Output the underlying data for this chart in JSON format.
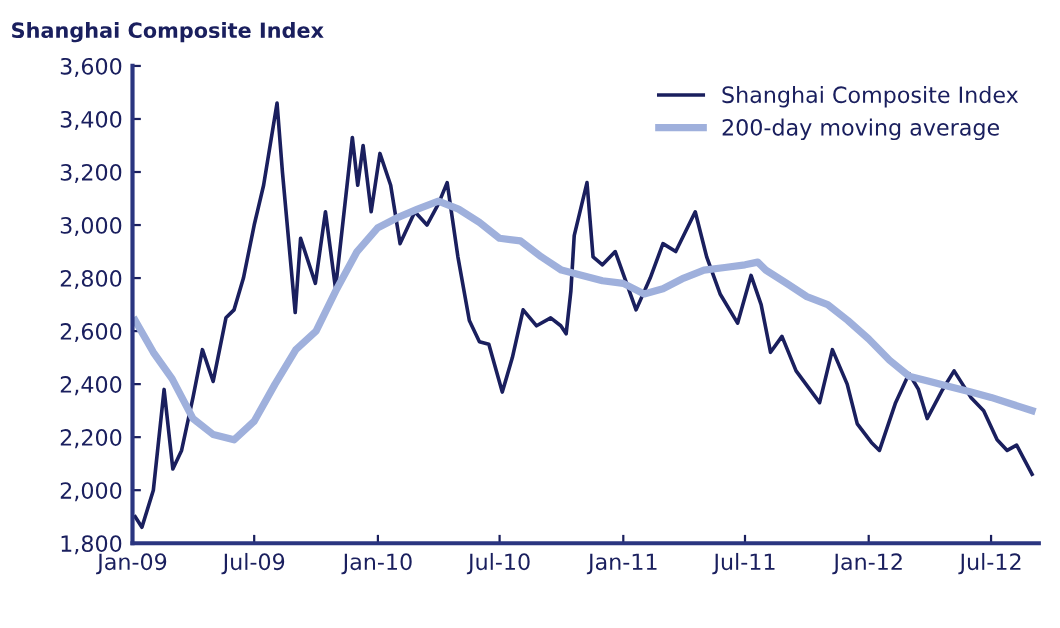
{
  "chart_data": {
    "type": "line",
    "title": "Shanghai Composite Index",
    "xlim": [
      "2009-01-01",
      "2012-09-10"
    ],
    "xticks": [
      {
        "value": "2009-01-01",
        "label": "Jan-09"
      },
      {
        "value": "2009-07-01",
        "label": "Jul-09"
      },
      {
        "value": "2010-01-01",
        "label": "Jan-10"
      },
      {
        "value": "2010-07-01",
        "label": "Jul-10"
      },
      {
        "value": "2011-01-01",
        "label": "Jan-11"
      },
      {
        "value": "2011-07-01",
        "label": "Jul-11"
      },
      {
        "value": "2012-01-01",
        "label": "Jan-12"
      },
      {
        "value": "2012-07-01",
        "label": "Jul-12"
      }
    ],
    "ylim": [
      1800,
      3600
    ],
    "yticks": [
      {
        "value": 1800,
        "label": "1,800"
      },
      {
        "value": 2000,
        "label": "2,000"
      },
      {
        "value": 2200,
        "label": "2,200"
      },
      {
        "value": 2400,
        "label": "2,400"
      },
      {
        "value": 2600,
        "label": "2,600"
      },
      {
        "value": 2800,
        "label": "2,800"
      },
      {
        "value": 3000,
        "label": "3,000"
      },
      {
        "value": 3200,
        "label": "3,200"
      },
      {
        "value": 3400,
        "label": "3,400"
      },
      {
        "value": 3600,
        "label": "3,600"
      }
    ],
    "grid": false,
    "legend": "top right",
    "line_style": "solid",
    "marker": "none",
    "series": [
      {
        "name": "Shanghai Composite Index",
        "color": "#1a1f5e",
        "x": [
          "2009-01-05",
          "2009-01-15",
          "2009-02-01",
          "2009-02-17",
          "2009-03-02",
          "2009-03-15",
          "2009-04-01",
          "2009-04-15",
          "2009-05-01",
          "2009-05-20",
          "2009-06-01",
          "2009-06-15",
          "2009-07-01",
          "2009-07-15",
          "2009-08-04",
          "2009-08-12",
          "2009-08-31",
          "2009-09-08",
          "2009-09-30",
          "2009-10-15",
          "2009-10-30",
          "2009-11-24",
          "2009-12-02",
          "2009-12-10",
          "2009-12-22",
          "2010-01-04",
          "2010-01-20",
          "2010-02-03",
          "2010-02-25",
          "2010-03-15",
          "2010-04-01",
          "2010-04-14",
          "2010-04-30",
          "2010-05-17",
          "2010-06-01",
          "2010-06-15",
          "2010-07-05",
          "2010-07-20",
          "2010-08-05",
          "2010-08-25",
          "2010-09-15",
          "2010-09-30",
          "2010-10-08",
          "2010-10-15",
          "2010-10-20",
          "2010-11-08",
          "2010-11-17",
          "2010-12-01",
          "2010-12-20",
          "2011-01-20",
          "2011-02-10",
          "2011-03-01",
          "2011-03-20",
          "2011-04-18",
          "2011-05-05",
          "2011-05-25",
          "2011-06-20",
          "2011-07-10",
          "2011-07-25",
          "2011-08-08",
          "2011-08-25",
          "2011-09-15",
          "2011-10-20",
          "2011-11-08",
          "2011-11-30",
          "2011-12-15",
          "2012-01-05",
          "2012-01-17",
          "2012-02-10",
          "2012-03-01",
          "2012-03-15",
          "2012-03-28",
          "2012-04-20",
          "2012-05-07",
          "2012-06-01",
          "2012-06-20",
          "2012-07-10",
          "2012-07-25",
          "2012-08-08",
          "2012-08-31"
        ],
        "values": [
          1900,
          1860,
          2000,
          2380,
          2080,
          2150,
          2350,
          2530,
          2410,
          2650,
          2680,
          2800,
          3000,
          3150,
          3460,
          3200,
          2670,
          2950,
          2780,
          3050,
          2760,
          3330,
          3150,
          3300,
          3050,
          3270,
          3150,
          2930,
          3050,
          3000,
          3080,
          3160,
          2880,
          2640,
          2560,
          2550,
          2370,
          2500,
          2680,
          2620,
          2650,
          2620,
          2590,
          2750,
          2960,
          3160,
          2880,
          2850,
          2900,
          2680,
          2800,
          2930,
          2900,
          3050,
          2880,
          2740,
          2630,
          2810,
          2700,
          2520,
          2580,
          2450,
          2330,
          2530,
          2400,
          2250,
          2180,
          2150,
          2330,
          2440,
          2380,
          2270,
          2380,
          2450,
          2350,
          2300,
          2190,
          2150,
          2170,
          2060
        ]
      },
      {
        "name": "200-day moving average",
        "color": "#9fb0dc",
        "x": [
          "2009-01-05",
          "2009-02-01",
          "2009-03-01",
          "2009-04-01",
          "2009-05-01",
          "2009-06-01",
          "2009-07-01",
          "2009-08-01",
          "2009-09-01",
          "2009-10-01",
          "2009-11-01",
          "2009-12-01",
          "2010-01-01",
          "2010-02-01",
          "2010-03-01",
          "2010-04-01",
          "2010-05-01",
          "2010-06-01",
          "2010-07-01",
          "2010-08-01",
          "2010-09-01",
          "2010-10-01",
          "2010-11-01",
          "2010-12-01",
          "2011-01-01",
          "2011-02-01",
          "2011-03-01",
          "2011-04-01",
          "2011-05-01",
          "2011-06-01",
          "2011-07-01",
          "2011-07-20",
          "2011-08-01",
          "2011-09-01",
          "2011-10-01",
          "2011-11-01",
          "2011-12-01",
          "2012-01-01",
          "2012-02-01",
          "2012-03-01",
          "2012-04-01",
          "2012-05-01",
          "2012-06-01",
          "2012-07-01",
          "2012-08-31"
        ],
        "values": [
          2640,
          2520,
          2420,
          2270,
          2210,
          2190,
          2260,
          2400,
          2530,
          2600,
          2760,
          2900,
          2990,
          3030,
          3060,
          3090,
          3060,
          3010,
          2950,
          2940,
          2880,
          2830,
          2810,
          2790,
          2780,
          2740,
          2760,
          2800,
          2830,
          2840,
          2850,
          2860,
          2830,
          2780,
          2730,
          2700,
          2640,
          2570,
          2490,
          2430,
          2410,
          2390,
          2370,
          2350,
          2300
        ]
      }
    ]
  }
}
